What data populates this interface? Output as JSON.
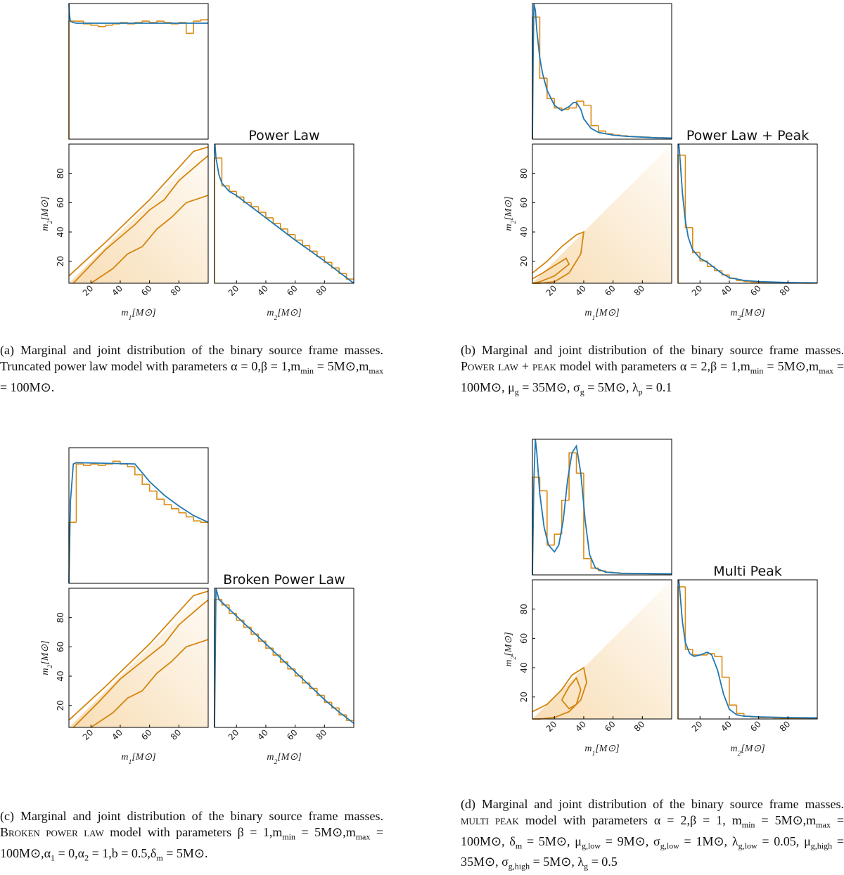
{
  "axis_labels": {
    "m1": [
      "m",
      {
        "sub": "1"
      },
      "[M⊙]"
    ],
    "m2": [
      "m",
      {
        "sub": "2"
      },
      "[M⊙]"
    ]
  },
  "colors": {
    "hist": "#dc8a12",
    "curve": "#1f78b4",
    "contour": "#d4850e",
    "shade": "#f0b45a"
  },
  "panels": [
    {
      "title": "Power Law",
      "lim": [
        5,
        100
      ],
      "ticks": [
        20,
        40,
        60,
        80
      ],
      "caption": [
        "(a) Marginal and joint distribution of the binary source frame masses. Truncated power law model with parameters α = 0,β = 1,m",
        {
          "sub": "min"
        },
        " = 5M⊙,m",
        {
          "sub": "max"
        },
        " = 100M⊙."
      ],
      "m1": {
        "ylim": [
          0,
          1
        ],
        "bins": [
          5,
          10,
          15,
          20,
          25,
          30,
          35,
          40,
          45,
          50,
          55,
          60,
          65,
          70,
          75,
          80,
          85,
          90,
          95,
          100
        ],
        "counts": [
          0.87,
          0.87,
          0.85,
          0.84,
          0.83,
          0.84,
          0.85,
          0.86,
          0.85,
          0.86,
          0.87,
          0.86,
          0.87,
          0.86,
          0.85,
          0.86,
          0.78,
          0.87,
          0.88
        ],
        "curve": {
          "x": [
            5,
            5.3,
            6,
            8,
            10,
            100
          ],
          "y": [
            1.0,
            0.92,
            0.87,
            0.86,
            0.855,
            0.855
          ]
        }
      },
      "m2": {
        "ylim": [
          0,
          1
        ],
        "bins": [
          5,
          10,
          15,
          20,
          25,
          30,
          35,
          40,
          45,
          50,
          55,
          60,
          65,
          70,
          75,
          80,
          85,
          90,
          95,
          100
        ],
        "counts": [
          0.9,
          0.7,
          0.66,
          0.62,
          0.58,
          0.55,
          0.51,
          0.47,
          0.43,
          0.39,
          0.35,
          0.31,
          0.27,
          0.23,
          0.19,
          0.15,
          0.11,
          0.07,
          0.03
        ],
        "curve": {
          "x": [
            5.3,
            6,
            8,
            10,
            15,
            20,
            40,
            60,
            80,
            100
          ],
          "y": [
            1.0,
            0.9,
            0.78,
            0.72,
            0.66,
            0.63,
            0.47,
            0.31,
            0.16,
            0.0
          ]
        }
      },
      "contours": [
        {
          "m1": [
            5,
            30,
            60,
            90,
            100
          ],
          "m2": [
            10,
            33,
            62,
            95,
            98
          ]
        },
        {
          "m1": [
            8,
            30,
            50,
            60,
            70,
            80,
            95,
            100
          ],
          "m2": [
            5,
            28,
            45,
            55,
            62,
            75,
            88,
            92
          ]
        },
        {
          "m1": [
            20,
            35,
            45,
            55,
            65,
            75,
            85,
            100
          ],
          "m2": [
            5,
            15,
            25,
            30,
            42,
            50,
            60,
            65
          ]
        }
      ]
    },
    {
      "title": "Power Law + Peak",
      "lim": [
        5,
        100
      ],
      "ticks": [
        20,
        40,
        60,
        80
      ],
      "caption": [
        "(b) Marginal and joint distribution of the binary source frame masses. ",
        {
          "sc": "Power law + peak"
        },
        " model with parameters α = 2,β = 1,m",
        {
          "sub": "min"
        },
        " = 5M⊙,m",
        {
          "sub": "max"
        },
        " = 100M⊙, μ",
        {
          "sub": "g"
        },
        " = 35M⊙, σ",
        {
          "sub": "g"
        },
        " = 5M⊙, λ",
        {
          "sub": "p"
        },
        " = 0.1"
      ],
      "m1": {
        "ylim": [
          0,
          1
        ],
        "bins": [
          5,
          10,
          15,
          20,
          25,
          30,
          35,
          40,
          45,
          50,
          55,
          60,
          65,
          70,
          75,
          80,
          85,
          90,
          95,
          100
        ],
        "counts": [
          0.9,
          0.45,
          0.3,
          0.23,
          0.22,
          0.23,
          0.28,
          0.25,
          0.1,
          0.06,
          0.04,
          0.03,
          0.025,
          0.02,
          0.018,
          0.015,
          0.012,
          0.01,
          0.008
        ],
        "curve": {
          "x": [
            5,
            5.5,
            6,
            7,
            8,
            10,
            12,
            15,
            20,
            25,
            30,
            33,
            35,
            38,
            40,
            45,
            50,
            60,
            70,
            80,
            90,
            100
          ],
          "y": [
            0,
            0.6,
            1.0,
            0.95,
            0.8,
            0.6,
            0.48,
            0.36,
            0.25,
            0.21,
            0.24,
            0.27,
            0.27,
            0.22,
            0.15,
            0.08,
            0.05,
            0.03,
            0.02,
            0.015,
            0.01,
            0.008
          ]
        }
      },
      "m2": {
        "ylim": [
          0,
          1
        ],
        "bins": [
          5,
          10,
          15,
          20,
          25,
          30,
          35,
          40,
          45,
          50,
          55,
          60,
          65,
          70,
          75,
          80,
          85,
          90,
          95,
          100
        ],
        "counts": [
          0.92,
          0.4,
          0.22,
          0.16,
          0.12,
          0.09,
          0.06,
          0.035,
          0.02,
          0.012,
          0.008,
          0.006,
          0.005,
          0.004,
          0.003,
          0.002,
          0.002,
          0.001,
          0.001
        ],
        "curve": {
          "x": [
            5.5,
            6,
            7,
            8,
            10,
            12,
            15,
            20,
            25,
            30,
            35,
            40,
            50,
            60,
            80,
            100
          ],
          "y": [
            1.0,
            0.95,
            0.8,
            0.65,
            0.45,
            0.33,
            0.24,
            0.18,
            0.15,
            0.11,
            0.07,
            0.04,
            0.02,
            0.012,
            0.005,
            0.002
          ]
        }
      },
      "contours": [
        {
          "m1": [
            5,
            15,
            25,
            35,
            40,
            38,
            30,
            20,
            10,
            5
          ],
          "m2": [
            12,
            20,
            30,
            38,
            40,
            25,
            12,
            6,
            5,
            5
          ]
        },
        {
          "m1": [
            5,
            12,
            20,
            28,
            30,
            20,
            10,
            5
          ],
          "m2": [
            8,
            12,
            17,
            22,
            18,
            10,
            6,
            5
          ]
        }
      ]
    },
    {
      "title": "Broken Power Law",
      "lim": [
        5,
        100
      ],
      "ticks": [
        20,
        40,
        60,
        80
      ],
      "caption": [
        "(c) Marginal and joint distribution of the binary source frame masses. ",
        {
          "sc": "Broken power law"
        },
        " model with parameters β = 1,m",
        {
          "sub": "min"
        },
        " = 5M⊙,m",
        {
          "sub": "max"
        },
        " = 100M⊙,α",
        {
          "sub": "1"
        },
        " = 0,α",
        {
          "sub": "2"
        },
        " = 1,b = 0.5,δ",
        {
          "sub": "m"
        },
        " = 5M⊙."
      ],
      "m1": {
        "ylim": [
          0,
          1
        ],
        "bins": [
          5,
          10,
          15,
          20,
          25,
          30,
          35,
          40,
          45,
          50,
          55,
          60,
          65,
          70,
          75,
          80,
          85,
          90,
          95,
          100
        ],
        "counts": [
          0.45,
          0.88,
          0.87,
          0.88,
          0.87,
          0.88,
          0.9,
          0.88,
          0.86,
          0.8,
          0.73,
          0.68,
          0.62,
          0.58,
          0.55,
          0.52,
          0.49,
          0.46,
          0.45
        ],
        "curve": {
          "x": [
            5,
            6,
            8,
            10,
            50,
            60,
            70,
            80,
            90,
            100
          ],
          "y": [
            0,
            0.6,
            0.88,
            0.89,
            0.88,
            0.75,
            0.65,
            0.57,
            0.5,
            0.45
          ]
        }
      },
      "m2": {
        "ylim": [
          0,
          1
        ],
        "bins": [
          5,
          10,
          15,
          20,
          25,
          30,
          35,
          40,
          45,
          50,
          55,
          60,
          65,
          70,
          75,
          80,
          85,
          90,
          95,
          100
        ],
        "counts": [
          0.92,
          0.88,
          0.82,
          0.77,
          0.72,
          0.67,
          0.62,
          0.57,
          0.52,
          0.47,
          0.42,
          0.37,
          0.32,
          0.28,
          0.23,
          0.18,
          0.14,
          0.09,
          0.05
        ],
        "curve": {
          "x": [
            5,
            6,
            8,
            10,
            20,
            30,
            40,
            50,
            60,
            70,
            80,
            90,
            100
          ],
          "y": [
            0,
            1.0,
            0.92,
            0.9,
            0.8,
            0.7,
            0.6,
            0.5,
            0.4,
            0.3,
            0.2,
            0.11,
            0.03
          ]
        }
      },
      "contours": [
        {
          "m1": [
            5,
            30,
            60,
            90,
            100
          ],
          "m2": [
            10,
            33,
            62,
            95,
            98
          ]
        },
        {
          "m1": [
            8,
            25,
            40,
            55,
            70,
            80,
            95,
            100
          ],
          "m2": [
            5,
            22,
            38,
            50,
            62,
            75,
            88,
            92
          ]
        },
        {
          "m1": [
            20,
            35,
            45,
            55,
            65,
            75,
            85,
            100
          ],
          "m2": [
            5,
            15,
            25,
            30,
            42,
            50,
            60,
            65
          ]
        }
      ]
    },
    {
      "title": "Multi Peak",
      "lim": [
        5,
        100
      ],
      "ticks": [
        20,
        40,
        60,
        80
      ],
      "caption": [
        "(d) Marginal and joint distribution of the binary source frame masses. ",
        {
          "sc": "multi peak"
        },
        " model with parameters α = 2,β = 1, m",
        {
          "sub": "min"
        },
        " = 5M⊙,m",
        {
          "sub": "max"
        },
        " = 100M⊙, δ",
        {
          "sub": "m"
        },
        " = 5M⊙, μ",
        {
          "sub": "g,low"
        },
        " = 9M⊙, σ",
        {
          "sub": "g,low"
        },
        " = 1M⊙, λ",
        {
          "sub": "g,low"
        },
        " = 0.05, μ",
        {
          "sub": "g,high"
        },
        " = 35M⊙, σ",
        {
          "sub": "g,high"
        },
        " = 5M⊙, λ",
        {
          "sub": "g"
        },
        " = 0.5"
      ],
      "m1": {
        "ylim": [
          0,
          1
        ],
        "bins": [
          5,
          10,
          15,
          20,
          25,
          30,
          35,
          40,
          45,
          50,
          55,
          60,
          65,
          70,
          75,
          80,
          85,
          90,
          95,
          100
        ],
        "counts": [
          0.72,
          0.62,
          0.22,
          0.3,
          0.55,
          0.9,
          0.75,
          0.12,
          0.05,
          0.03,
          0.02,
          0.015,
          0.01,
          0.01,
          0.01,
          0.01,
          0.008,
          0.008,
          0.008
        ],
        "curve": {
          "x": [
            5,
            6,
            7,
            8,
            10,
            13,
            16,
            20,
            23,
            26,
            29,
            32,
            35,
            38,
            41,
            44,
            48,
            55,
            65,
            80,
            100
          ],
          "y": [
            0,
            0.7,
            1.0,
            0.9,
            0.6,
            0.35,
            0.22,
            0.17,
            0.22,
            0.4,
            0.7,
            0.9,
            0.95,
            0.75,
            0.4,
            0.15,
            0.05,
            0.02,
            0.012,
            0.01,
            0.008
          ]
        }
      },
      "m2": {
        "ylim": [
          0,
          1
        ],
        "bins": [
          5,
          10,
          15,
          20,
          25,
          30,
          35,
          40,
          45,
          50,
          55,
          60,
          65,
          70,
          75,
          80,
          85,
          90,
          95,
          100
        ],
        "counts": [
          0.95,
          0.5,
          0.46,
          0.46,
          0.47,
          0.45,
          0.3,
          0.1,
          0.04,
          0.02,
          0.015,
          0.01,
          0.01,
          0.008,
          0.006,
          0.005,
          0.004,
          0.003,
          0.003
        ],
        "curve": {
          "x": [
            5.5,
            6,
            8,
            10,
            13,
            16,
            20,
            25,
            28,
            32,
            36,
            40,
            45,
            50,
            60,
            80,
            100
          ],
          "y": [
            1.0,
            0.95,
            0.7,
            0.55,
            0.47,
            0.45,
            0.46,
            0.48,
            0.46,
            0.35,
            0.18,
            0.07,
            0.03,
            0.02,
            0.015,
            0.01,
            0.008
          ]
        }
      },
      "contours": [
        {
          "m1": [
            5,
            15,
            25,
            32,
            40,
            42,
            38,
            30,
            20,
            10,
            5
          ],
          "m2": [
            10,
            15,
            25,
            35,
            40,
            30,
            18,
            10,
            6,
            5,
            5
          ]
        },
        {
          "m1": [
            25,
            30,
            35,
            38,
            35,
            30,
            25
          ],
          "m2": [
            18,
            27,
            33,
            25,
            15,
            12,
            18
          ]
        }
      ]
    }
  ]
}
